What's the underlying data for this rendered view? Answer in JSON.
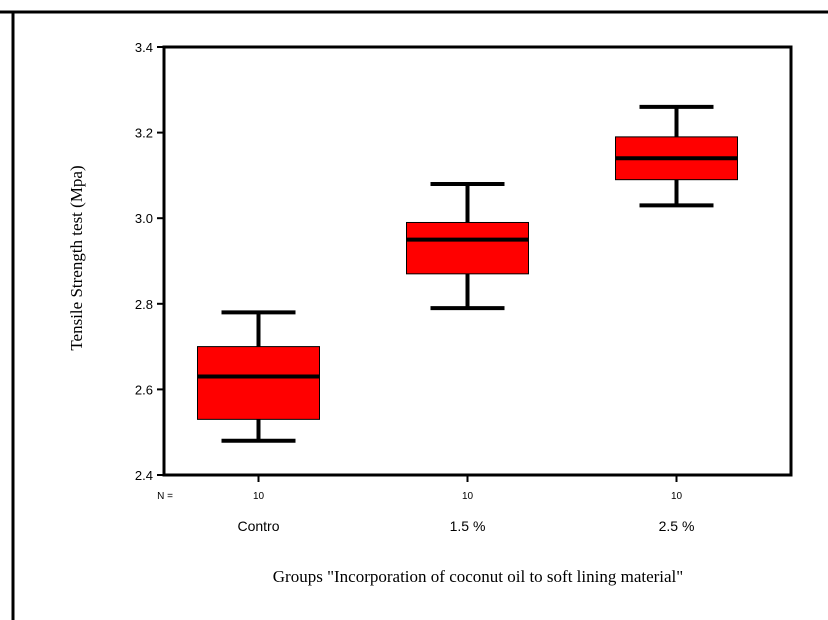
{
  "chart_data": {
    "type": "boxplot",
    "ylabel": "Tensile Strength test  (Mpa)",
    "xlabel": "Groups \"Incorporation of coconut oil to soft lining material\"",
    "ylim": [
      2.4,
      3.4
    ],
    "yticks": [
      2.4,
      2.6,
      2.8,
      3.0,
      3.2,
      3.4
    ],
    "ytick_labels": [
      "2.4",
      "2.6",
      "2.8",
      "3.0",
      "3.2",
      "3.4"
    ],
    "n_label": "N =",
    "categories": [
      "Contro",
      "1.5 %",
      "2.5 %"
    ],
    "n_values": [
      "10",
      "10",
      "10"
    ],
    "boxes": [
      {
        "category": "Contro",
        "whisker_low": 2.48,
        "q1": 2.53,
        "median": 2.63,
        "q3": 2.7,
        "whisker_high": 2.78
      },
      {
        "category": "1.5 %",
        "whisker_low": 2.79,
        "q1": 2.87,
        "median": 2.95,
        "q3": 2.99,
        "whisker_high": 3.08
      },
      {
        "category": "2.5 %",
        "whisker_low": 3.03,
        "q1": 3.09,
        "median": 3.14,
        "q3": 3.19,
        "whisker_high": 3.26
      }
    ],
    "box_color": "#ff0000",
    "grid": false,
    "legend": "none"
  }
}
